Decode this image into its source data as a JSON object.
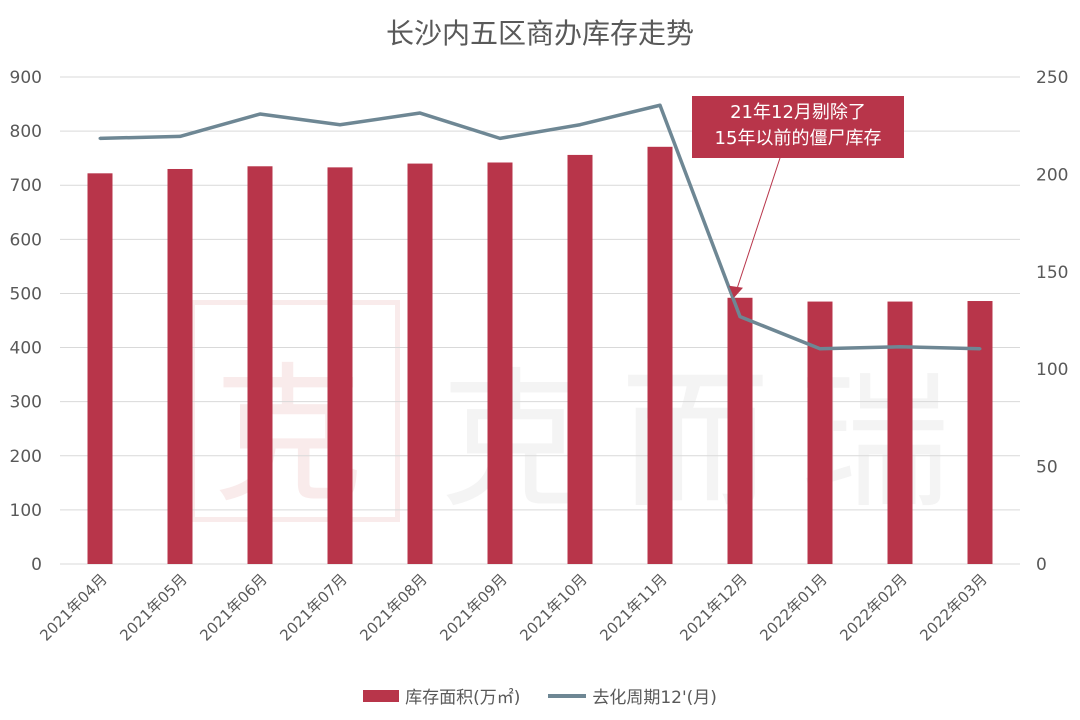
{
  "colors": {
    "bar": "#b8354a",
    "line": "#6e8794",
    "grid": "#d9d9d9",
    "callout": "#b8354a"
  },
  "watermark": {
    "seal": "克",
    "text": [
      "克",
      "而",
      "瑞"
    ]
  },
  "chart_data": {
    "type": "bar",
    "title": "长沙内五区商办库存走势",
    "categories": [
      "2021年04月",
      "2021年05月",
      "2021年06月",
      "2021年07月",
      "2021年08月",
      "2021年09月",
      "2021年10月",
      "2021年11月",
      "2021年12月",
      "2022年01月",
      "2022年02月",
      "2022年03月"
    ],
    "series": [
      {
        "name": "库存面积(万㎡)",
        "type": "bar",
        "axis": "left",
        "values": [
          722,
          730,
          735,
          733,
          740,
          742,
          756,
          771,
          492,
          485,
          485,
          486
        ]
      },
      {
        "name": "去化周期12'(月)",
        "type": "line",
        "axis": "right",
        "values": [
          218.5,
          219.5,
          231,
          225.5,
          231.5,
          218.5,
          225.5,
          235.5,
          127,
          110.5,
          111.5,
          110.5
        ]
      }
    ],
    "y_left": {
      "min": 0,
      "max": 900,
      "ticks": [
        0,
        100,
        200,
        300,
        400,
        500,
        600,
        700,
        800,
        900
      ]
    },
    "y_right": {
      "min": 0,
      "max": 250,
      "ticks": [
        0,
        50,
        100,
        150,
        200,
        250
      ]
    },
    "grid": true,
    "legend": "bottom",
    "annotation": {
      "lines": [
        "21年12月剔除了",
        "15年以前的僵尸库存"
      ],
      "target_category": "2021年12月"
    }
  }
}
